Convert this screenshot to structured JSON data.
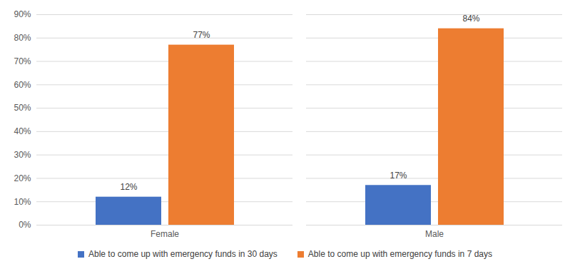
{
  "chart_data": {
    "type": "bar",
    "categories": [
      "Female",
      "Male"
    ],
    "series": [
      {
        "name": "Able to come up with emergency funds in 30 days",
        "color": "#4472c4",
        "values": [
          12,
          17
        ],
        "value_labels": [
          "12%",
          "17%"
        ]
      },
      {
        "name": "Able to come up with emergency funds in 7 days",
        "color": "#ed7d31",
        "values": [
          77,
          84
        ],
        "value_labels": [
          "77%",
          "84%"
        ]
      }
    ],
    "ylim": [
      0,
      90
    ],
    "yticks": [
      {
        "value": 0,
        "label": "0%"
      },
      {
        "value": 10,
        "label": "10%"
      },
      {
        "value": 20,
        "label": "20%"
      },
      {
        "value": 30,
        "label": "30%"
      },
      {
        "value": 40,
        "label": "40%"
      },
      {
        "value": 50,
        "label": "50%"
      },
      {
        "value": 60,
        "label": "60%"
      },
      {
        "value": 70,
        "label": "70%"
      },
      {
        "value": 80,
        "label": "80%"
      },
      {
        "value": 90,
        "label": "90%"
      }
    ],
    "grid": true,
    "data_labels": true,
    "legend": "bottom"
  }
}
